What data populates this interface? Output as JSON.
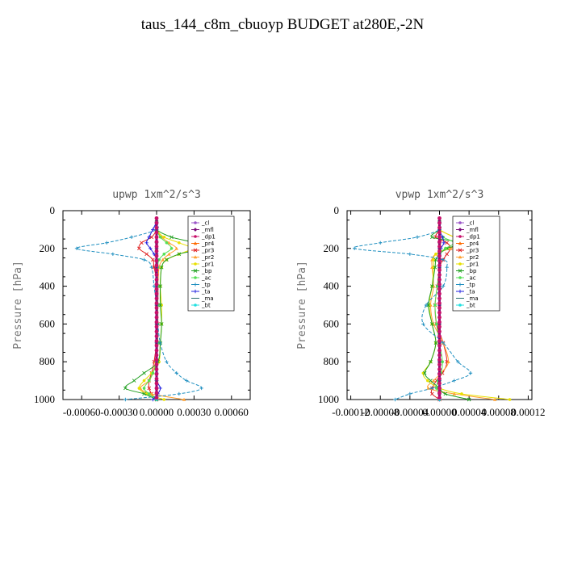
{
  "title": "taus_144_c8m_cbuoyp  BUDGET at280E,-2N",
  "colors": {
    "_cl": "#9a55c8",
    "_mfl": "#7a0a7a",
    "_dp1": "#c8106a",
    "_pr4": "#ff6a00",
    "_pr3": "#e02020",
    "_pr2": "#ffa030",
    "_pr1": "#e8e000",
    "_bp": "#22a022",
    "_ac": "#55e055",
    "_tp": "#1f8fc0",
    "_ta": "#2222e0",
    "_ma": "#2a7070",
    "_bt": "#22e0e0"
  },
  "chart_data": [
    {
      "type": "line",
      "title": "upwp   1xm^2/s^3",
      "ylabel": "Pressure [hPa]",
      "ylim": [
        1000,
        0
      ],
      "xlim": [
        -0.00075,
        0.00075
      ],
      "xticks": [
        "-0.00060",
        "-0.00030",
        "0.00000",
        "0.00030",
        "0.00060"
      ],
      "xtick_values": [
        -0.0006,
        -0.0003,
        0.0,
        0.0003,
        0.0006
      ],
      "yticks": [
        "0",
        "200",
        "400",
        "600",
        "800",
        "1000"
      ],
      "ytick_values": [
        0,
        200,
        400,
        600,
        800,
        1000
      ],
      "legend_position": "top-right",
      "pressure": [
        100,
        140,
        170,
        200,
        230,
        260,
        300,
        400,
        500,
        600,
        700,
        800,
        860,
        900,
        940,
        970,
        1000
      ],
      "series": [
        {
          "name": "_cl",
          "values": [
            0,
            0,
            0,
            0,
            0,
            0,
            0,
            0,
            0,
            0,
            0,
            0,
            0,
            0,
            0,
            0,
            0
          ]
        },
        {
          "name": "_mfl",
          "values": [
            0,
            0,
            0,
            0,
            0,
            0,
            0,
            0,
            0,
            0,
            0,
            0,
            0,
            0,
            0,
            0,
            0
          ]
        },
        {
          "name": "_dp1",
          "values": [
            0,
            0,
            0,
            0,
            0,
            0,
            0,
            0,
            0,
            0,
            0,
            0,
            0,
            0,
            0,
            0,
            0
          ]
        },
        {
          "name": "_pr4",
          "values": [
            0,
            0,
            0,
            0,
            0,
            0,
            0,
            0,
            0,
            0,
            0,
            0,
            0,
            0,
            0,
            0,
            0
          ]
        },
        {
          "name": "_pr3",
          "values": [
            0,
            -4e-05,
            -0.00012,
            -0.00014,
            -8e-05,
            -3e-05,
            -2e-05,
            1e-05,
            1e-05,
            1e-05,
            0,
            -2e-05,
            -4e-05,
            -6e-05,
            -6e-05,
            -4e-05,
            0
          ]
        },
        {
          "name": "_pr2",
          "values": [
            0,
            4e-05,
            0.0001,
            0.00016,
            0.0001,
            5e-05,
            2e-05,
            1e-05,
            0,
            0,
            0,
            -1e-05,
            -3e-05,
            -6e-05,
            -0.00013,
            -4e-05,
            0.00022
          ]
        },
        {
          "name": "_pr1",
          "values": [
            0,
            6e-05,
            0.00018,
            0.00028,
            0.00018,
            8e-05,
            4e-05,
            3e-05,
            4e-05,
            4e-05,
            3e-05,
            2e-05,
            -4e-05,
            -0.0001,
            -0.00014,
            -8e-05,
            6e-05
          ]
        },
        {
          "name": "_bp",
          "values": [
            0,
            0.00012,
            0.0003,
            0.00036,
            0.00018,
            8e-05,
            4e-05,
            3e-05,
            3e-05,
            4e-05,
            3e-05,
            1e-05,
            -0.0001,
            -0.00018,
            -0.00025,
            -0.0001,
            0
          ]
        },
        {
          "name": "_ac",
          "values": [
            0,
            3e-05,
            8e-05,
            0.00012,
            6e-05,
            2e-05,
            1e-05,
            1e-05,
            1e-05,
            1e-05,
            1e-05,
            0,
            -3e-05,
            -6e-05,
            -0.0001,
            -6e-05,
            0
          ]
        },
        {
          "name": "_tp",
          "values": [
            0,
            -0.0002,
            -0.0004,
            -0.00064,
            -0.00035,
            -0.0001,
            -4e-05,
            -2e-05,
            0,
            1e-05,
            3e-05,
            8e-05,
            0.00016,
            0.00024,
            0.00036,
            0.00018,
            -0.00025
          ]
        },
        {
          "name": "_ta",
          "values": [
            -3e-05,
            -6e-05,
            -8e-05,
            -5e-05,
            -2e-05,
            0,
            0,
            0,
            0,
            0,
            0,
            0,
            0,
            0,
            3e-05,
            1e-05,
            -3e-05
          ]
        },
        {
          "name": "_ma",
          "values": [
            0,
            0,
            0,
            0,
            0,
            0,
            0,
            0,
            0,
            0,
            0,
            0,
            0,
            0,
            0,
            0,
            0
          ]
        },
        {
          "name": "_bt",
          "values": [
            0,
            0,
            0,
            0,
            0,
            0,
            0,
            0,
            0,
            0,
            0,
            0,
            0,
            0,
            0,
            0,
            0
          ]
        }
      ]
    },
    {
      "type": "line",
      "title": "vpwp   1xm^2/s^3",
      "ylabel": "Pressure [hPa]",
      "ylim": [
        1000,
        0
      ],
      "xlim": [
        -0.000125,
        0.000125
      ],
      "xticks": [
        "-0.00012",
        "-0.00008",
        "-0.00004",
        "0.00000",
        "0.00004",
        "0.00008",
        "0.00012"
      ],
      "xtick_values": [
        -0.00012,
        -8e-05,
        -4e-05,
        0.0,
        4e-05,
        8e-05,
        0.00012
      ],
      "yticks": [
        "0",
        "200",
        "400",
        "600",
        "800",
        "1000"
      ],
      "ytick_values": [
        0,
        200,
        400,
        600,
        800,
        1000
      ],
      "legend_position": "top-right",
      "pressure": [
        100,
        140,
        170,
        200,
        230,
        260,
        300,
        400,
        500,
        600,
        700,
        800,
        860,
        900,
        940,
        970,
        1000
      ],
      "series": [
        {
          "name": "_cl",
          "values": [
            0,
            0,
            0,
            0,
            0,
            0,
            0,
            0,
            0,
            0,
            0,
            0,
            0,
            0,
            0,
            0,
            0
          ]
        },
        {
          "name": "_mfl",
          "values": [
            0,
            0,
            0,
            0,
            0,
            0,
            0,
            0,
            0,
            0,
            0,
            0,
            0,
            0,
            0,
            0,
            0
          ]
        },
        {
          "name": "_dp1",
          "values": [
            0,
            0,
            0,
            0,
            0,
            0,
            0,
            0,
            0,
            0,
            0,
            0,
            0,
            0,
            0,
            0,
            0
          ]
        },
        {
          "name": "_pr4",
          "values": [
            0,
            0,
            0,
            0,
            0,
            0,
            0,
            0,
            0,
            0,
            0,
            0,
            0,
            0,
            0,
            0,
            0
          ]
        },
        {
          "name": "_pr3",
          "values": [
            0,
            -5e-06,
            1e-05,
            1.5e-05,
            1e-05,
            5e-06,
            0,
            -3e-06,
            -6e-06,
            -4e-06,
            5e-06,
            1e-05,
            4e-06,
            -4e-06,
            -1e-05,
            -1e-05,
            0
          ]
        },
        {
          "name": "_pr2",
          "values": [
            0,
            2e-05,
            4e-05,
            1.5e-05,
            -5e-06,
            -1e-05,
            -1e-05,
            -8e-06,
            -1.2e-05,
            -8e-06,
            5e-06,
            1.2e-05,
            2e-06,
            -8e-06,
            -1.5e-05,
            2e-05,
            7.5e-05
          ]
        },
        {
          "name": "_pr1",
          "values": [
            0,
            2e-05,
            3.5e-05,
            1e-05,
            -5e-06,
            -8e-06,
            -8e-06,
            -1e-05,
            -1.4e-05,
            -1e-05,
            -5e-06,
            -1.2e-05,
            -2.2e-05,
            -1.6e-05,
            0,
            3e-05,
            9.5e-05
          ]
        },
        {
          "name": "_bp",
          "values": [
            0,
            -1e-05,
            3e-05,
            1e-05,
            0,
            -5e-06,
            -6e-06,
            -1e-05,
            -1.5e-05,
            -1e-05,
            -5e-06,
            -1.2e-05,
            -2e-05,
            -1.2e-05,
            0,
            8e-06,
            4e-05
          ]
        },
        {
          "name": "_ac",
          "values": [
            0,
            5e-06,
            2e-05,
            8e-06,
            0,
            0,
            0,
            -3e-06,
            -6e-06,
            -4e-06,
            0,
            4e-06,
            2e-06,
            -2e-06,
            -4e-06,
            0,
            0
          ]
        },
        {
          "name": "_tp",
          "values": [
            0,
            -3e-05,
            -8e-05,
            -0.000115,
            -4e-05,
            5e-06,
            1e-05,
            5e-06,
            -1.8e-05,
            -2.2e-05,
            5e-06,
            2.5e-05,
            4.2e-05,
            2e-05,
            -1e-05,
            -4e-05,
            -6e-05
          ]
        },
        {
          "name": "_ta",
          "values": [
            0,
            4e-06,
            6e-06,
            2e-06,
            0,
            0,
            0,
            0,
            0,
            0,
            0,
            0,
            0,
            0,
            0,
            0,
            0
          ]
        },
        {
          "name": "_ma",
          "values": [
            0,
            0,
            0,
            0,
            0,
            0,
            0,
            0,
            0,
            0,
            0,
            0,
            0,
            0,
            0,
            0,
            0
          ]
        },
        {
          "name": "_bt",
          "values": [
            0,
            0,
            0,
            0,
            0,
            0,
            0,
            0,
            0,
            0,
            0,
            0,
            0,
            0,
            0,
            0,
            0
          ]
        }
      ]
    }
  ]
}
